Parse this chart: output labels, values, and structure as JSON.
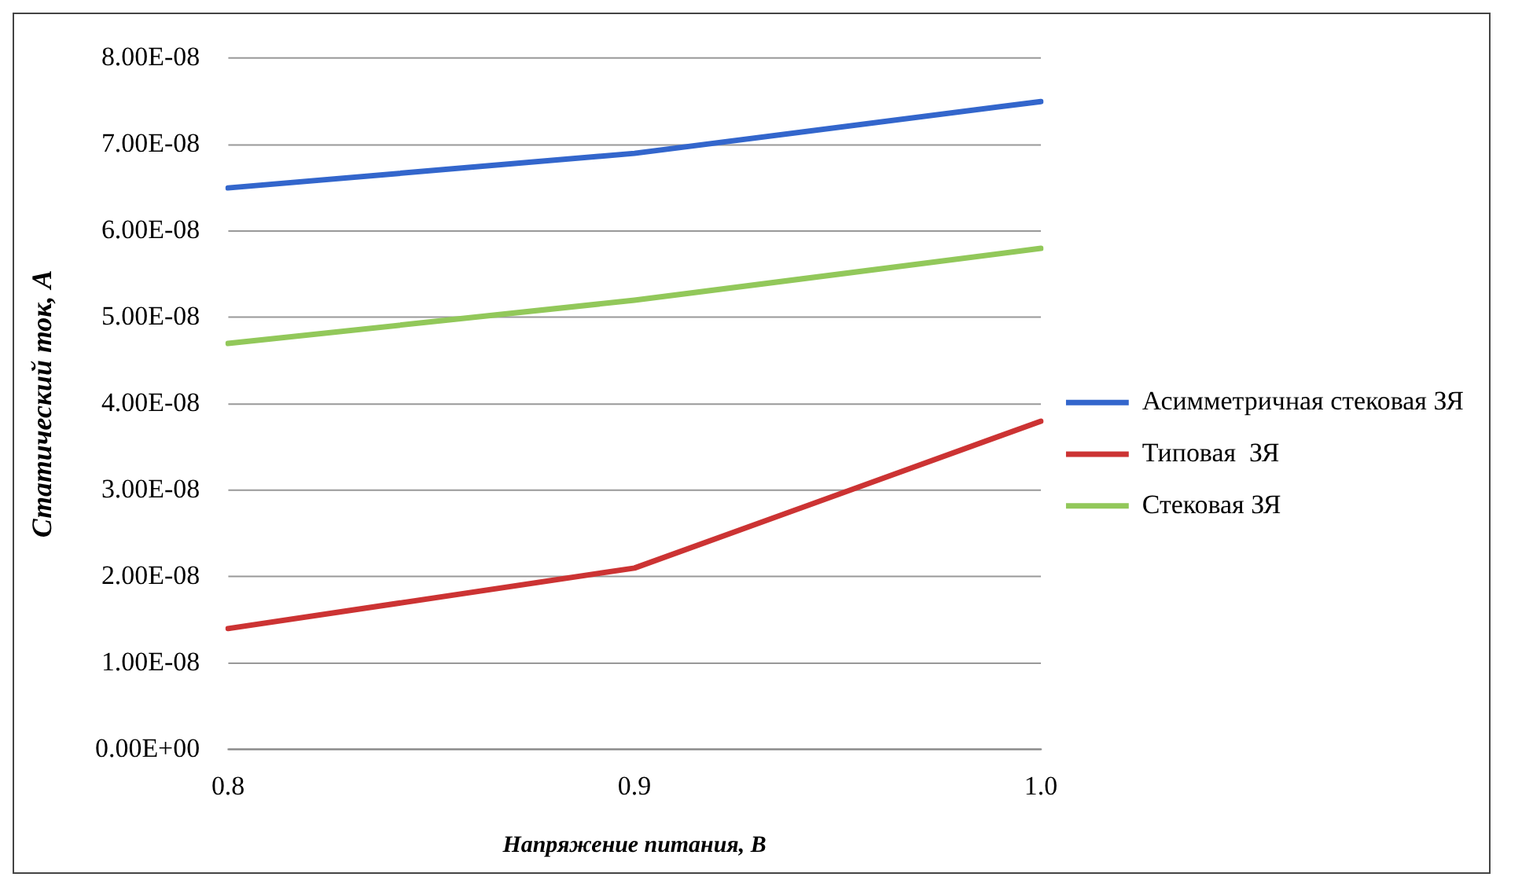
{
  "chart_data": {
    "type": "line",
    "xlabel": "Напряжение питания, В",
    "ylabel": "Статический ток, А",
    "categories": [
      "0.8",
      "0.9",
      "1.0"
    ],
    "series": [
      {
        "name": "Асимметричная стековая ЗЯ",
        "color": "#3366cc",
        "values": [
          6.5e-08,
          6.9e-08,
          7.5e-08
        ]
      },
      {
        "name": "Типовая  ЗЯ",
        "color": "#cc3333",
        "values": [
          1.4e-08,
          2.1e-08,
          3.8e-08
        ]
      },
      {
        "name": "Стековая ЗЯ",
        "color": "#92c85a",
        "values": [
          4.7e-08,
          5.2e-08,
          5.8e-08
        ]
      }
    ],
    "ylim": [
      0,
      8e-08
    ],
    "yticks": [
      {
        "value": 0,
        "label": "0.00E+00"
      },
      {
        "value": 1e-08,
        "label": "1.00E-08"
      },
      {
        "value": 2e-08,
        "label": "2.00E-08"
      },
      {
        "value": 3e-08,
        "label": "3.00E-08"
      },
      {
        "value": 4e-08,
        "label": "4.00E-08"
      },
      {
        "value": 5e-08,
        "label": "5.00E-08"
      },
      {
        "value": 6e-08,
        "label": "6.00E-08"
      },
      {
        "value": 7e-08,
        "label": "7.00E-08"
      },
      {
        "value": 8e-08,
        "label": "8.00E-08"
      }
    ],
    "grid": "y",
    "legend": "right",
    "marker": "none",
    "line_style": "solid"
  }
}
